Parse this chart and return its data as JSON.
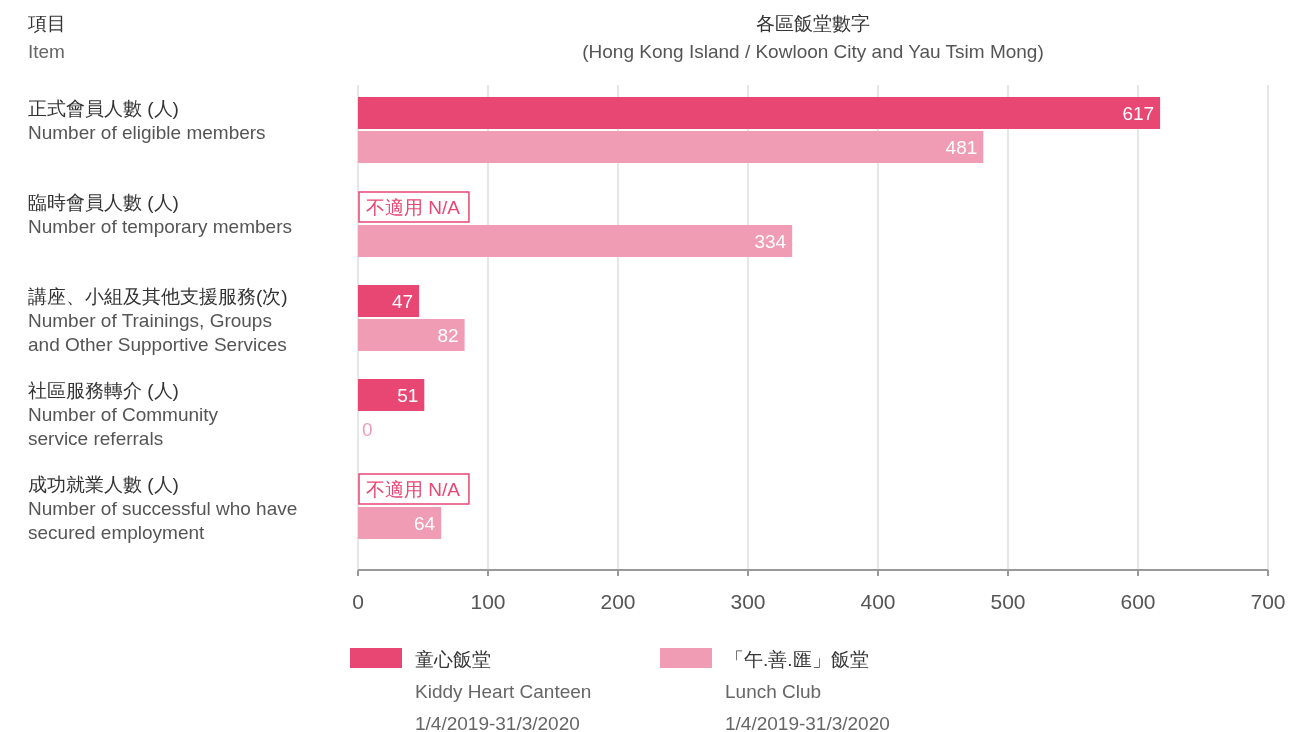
{
  "chart_data": {
    "type": "bar",
    "orientation": "horizontal",
    "title": "各區飯堂數字",
    "subtitle": "(Hong Kong Island / Kowloon City and Yau Tsim Mong)",
    "annotations": [
      "項目\nItem"
    ],
    "categories": [
      "正式會員人數 (人)\nNumber of eligible members",
      "臨時會員人數 (人)\nNumber of temporary members",
      "講座、小組及其他支援服務(次)\nNumber of Trainings, Groups\nand Other Supportive Services",
      "社區服務轉介 (人)\nNumber of Community\nservice referrals",
      "成功就業人數 (人)\nNumber of successful who have\nsecured employment"
    ],
    "series": [
      {
        "name": "童心飯堂\nKiddy Heart Canteen\n1/4/2019-31/3/2020",
        "color": "#e84774",
        "values": [
          617,
          null,
          47,
          51,
          null
        ],
        "value_labels": [
          "617",
          "不適用 N/A",
          "47",
          "51",
          "不適用 N/A"
        ]
      },
      {
        "name": "「午.善.匯」飯堂\nLunch Club\n1/4/2019-31/3/2020",
        "color": "#f09cb5",
        "values": [
          481,
          334,
          82,
          0,
          64
        ],
        "value_labels": [
          "481",
          "334",
          "82",
          "0",
          "64"
        ]
      }
    ],
    "xlim": [
      0,
      700
    ],
    "xticks": [
      0,
      100,
      200,
      300,
      400,
      500,
      600,
      700
    ],
    "grid": "x",
    "legend": "bottom"
  }
}
